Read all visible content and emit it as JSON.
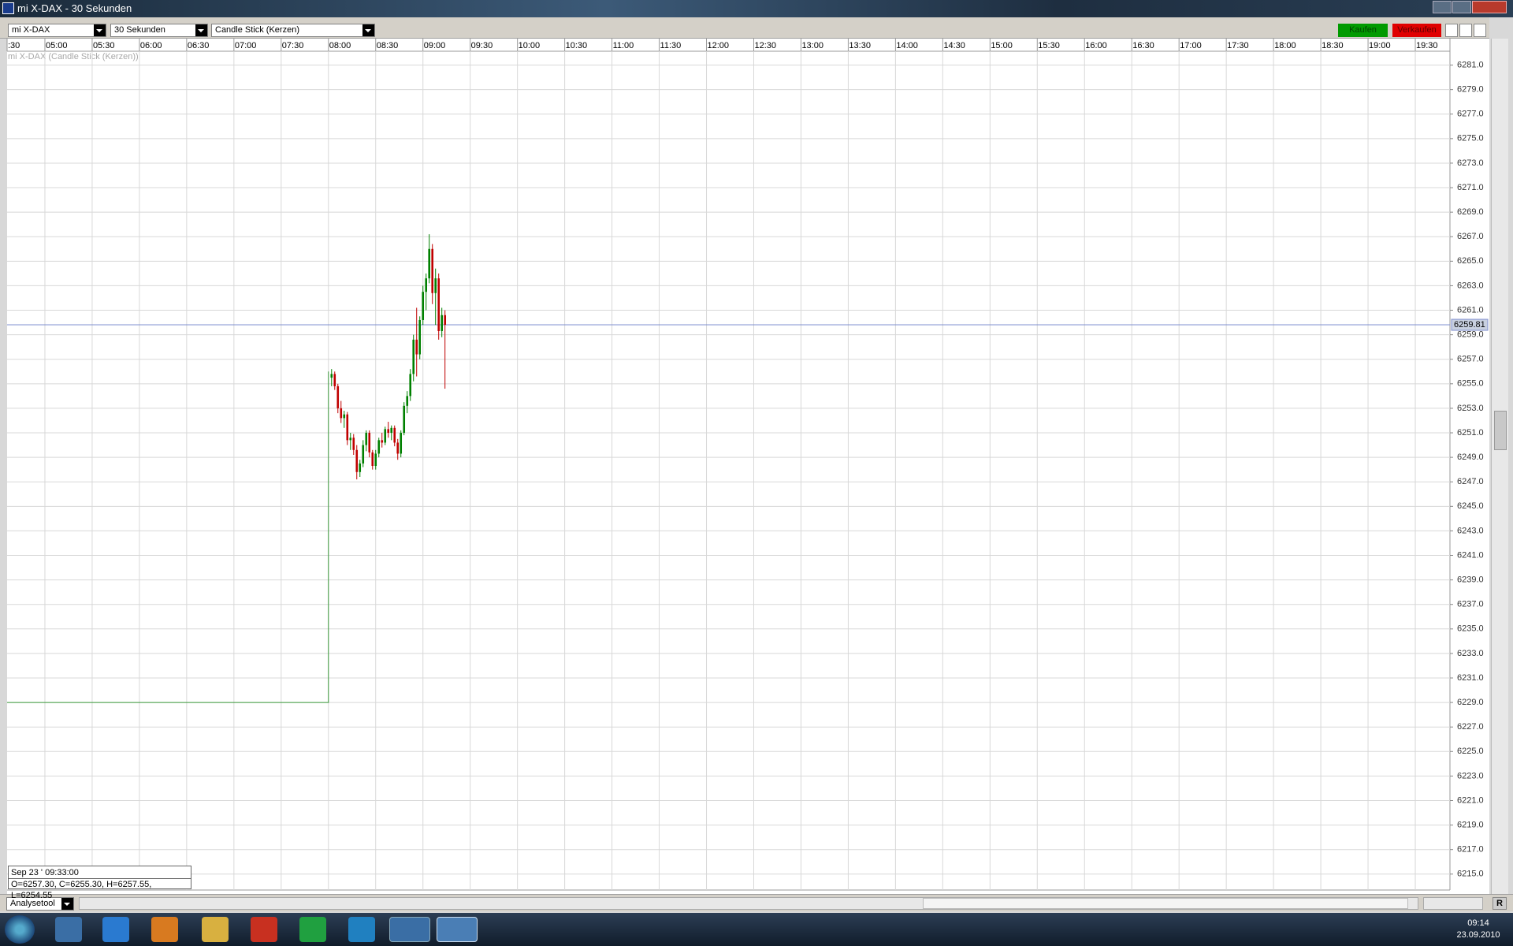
{
  "window": {
    "title": "mi X-DAX - 30 Sekunden"
  },
  "toolbar": {
    "instrument": "mi X-DAX",
    "interval": "30 Sekunden",
    "chart_style": "Candle Stick (Kerzen)",
    "buy": "Kaufen",
    "sell": "Verkaufen"
  },
  "chart_data": {
    "type": "candlestick",
    "title": "mi X-DAX (Candle Stick (Kerzen))",
    "x": [
      482,
      484,
      486,
      488,
      490,
      492,
      494,
      496,
      498,
      500,
      502,
      504,
      506,
      508,
      510,
      512,
      514,
      516,
      518,
      520,
      522,
      524,
      526,
      528,
      530,
      532,
      534,
      536,
      538,
      540,
      542,
      544,
      546,
      548,
      550,
      552,
      554
    ],
    "open": [
      6255.5,
      6255.8,
      6254.8,
      6253.0,
      6252.2,
      6252.5,
      6250.4,
      6250.6,
      6249.6,
      6247.8,
      6248.5,
      6250.0,
      6251.0,
      6249.4,
      6248.3,
      6249.3,
      6250.4,
      6250.2,
      6251.3,
      6251.0,
      6251.4,
      6250.2,
      6249.3,
      6251.0,
      6253.2,
      6254.0,
      6255.8,
      6258.6,
      6257.4,
      6260.2,
      6262.5,
      6263.6,
      6266.0,
      6262.4,
      6263.6,
      6259.3,
      6260.6
    ],
    "high": [
      6256.2,
      6256.0,
      6255.0,
      6253.6,
      6252.8,
      6252.7,
      6251.0,
      6250.9,
      6250.0,
      6248.8,
      6250.4,
      6251.2,
      6251.2,
      6249.6,
      6249.6,
      6250.6,
      6251.0,
      6251.5,
      6251.9,
      6251.6,
      6251.6,
      6250.5,
      6251.2,
      6253.5,
      6254.4,
      6256.2,
      6259.0,
      6261.2,
      6260.5,
      6263.0,
      6264.0,
      6267.2,
      6266.4,
      6264.4,
      6264.0,
      6261.2,
      6261.0
    ],
    "low": [
      6254.8,
      6254.5,
      6252.6,
      6251.8,
      6251.4,
      6250.0,
      6249.6,
      6249.2,
      6247.2,
      6247.4,
      6248.2,
      6249.5,
      6249.0,
      6248.0,
      6248.0,
      6249.0,
      6249.8,
      6250.0,
      6250.6,
      6250.4,
      6249.9,
      6248.8,
      6249.0,
      6250.8,
      6252.6,
      6253.6,
      6255.2,
      6255.6,
      6257.0,
      6259.8,
      6261.0,
      6263.2,
      6261.5,
      6259.8,
      6258.6,
      6258.8,
      6254.6
    ],
    "close": [
      6255.8,
      6254.8,
      6253.0,
      6252.2,
      6252.5,
      6250.4,
      6250.6,
      6249.6,
      6247.8,
      6248.5,
      6250.0,
      6251.0,
      6249.4,
      6248.3,
      6249.3,
      6250.4,
      6250.2,
      6251.3,
      6251.0,
      6251.4,
      6250.2,
      6249.3,
      6251.0,
      6253.2,
      6254.0,
      6255.8,
      6258.6,
      6257.4,
      6260.2,
      6262.5,
      6263.6,
      6266.0,
      6262.4,
      6263.6,
      6259.3,
      6260.6,
      6259.81
    ],
    "up_color": "#008000",
    "down_color": "#c00000",
    "series": [
      {
        "color": "#3a9a3a",
        "x": [
          276,
          480,
          480
        ],
        "values": [
          6229,
          6229,
          6256
        ]
      }
    ],
    "last_price": 6259.81,
    "last_price_color": "#8090d0",
    "grid": true,
    "xlim": [
      276,
      1192
    ],
    "ylim": [
      6213.7,
      6282.0
    ],
    "xticks": [
      {
        "value": 270,
        "label": ":30"
      },
      {
        "value": 300,
        "label": "05:00"
      },
      {
        "value": 330,
        "label": "05:30"
      },
      {
        "value": 360,
        "label": "06:00"
      },
      {
        "value": 390,
        "label": "06:30"
      },
      {
        "value": 420,
        "label": "07:00"
      },
      {
        "value": 450,
        "label": "07:30"
      },
      {
        "value": 480,
        "label": "08:00"
      },
      {
        "value": 510,
        "label": "08:30"
      },
      {
        "value": 540,
        "label": "09:00"
      },
      {
        "value": 570,
        "label": "09:30"
      },
      {
        "value": 600,
        "label": "10:00"
      },
      {
        "value": 630,
        "label": "10:30"
      },
      {
        "value": 660,
        "label": "11:00"
      },
      {
        "value": 690,
        "label": "11:30"
      },
      {
        "value": 720,
        "label": "12:00"
      },
      {
        "value": 750,
        "label": "12:30"
      },
      {
        "value": 780,
        "label": "13:00"
      },
      {
        "value": 810,
        "label": "13:30"
      },
      {
        "value": 840,
        "label": "14:00"
      },
      {
        "value": 870,
        "label": "14:30"
      },
      {
        "value": 900,
        "label": "15:00"
      },
      {
        "value": 930,
        "label": "15:30"
      },
      {
        "value": 960,
        "label": "16:00"
      },
      {
        "value": 990,
        "label": "16:30"
      },
      {
        "value": 1020,
        "label": "17:00"
      },
      {
        "value": 1050,
        "label": "17:30"
      },
      {
        "value": 1080,
        "label": "18:00"
      },
      {
        "value": 1110,
        "label": "18:30"
      },
      {
        "value": 1140,
        "label": "19:00"
      },
      {
        "value": 1170,
        "label": "19:30"
      }
    ],
    "yticks": [
      {
        "value": 6215,
        "label": "6215.0"
      },
      {
        "value": 6217,
        "label": "6217.0"
      },
      {
        "value": 6219,
        "label": "6219.0"
      },
      {
        "value": 6221,
        "label": "6221.0"
      },
      {
        "value": 6223,
        "label": "6223.0"
      },
      {
        "value": 6225,
        "label": "6225.0"
      },
      {
        "value": 6227,
        "label": "6227.0"
      },
      {
        "value": 6229,
        "label": "6229.0"
      },
      {
        "value": 6231,
        "label": "6231.0"
      },
      {
        "value": 6233,
        "label": "6233.0"
      },
      {
        "value": 6235,
        "label": "6235.0"
      },
      {
        "value": 6237,
        "label": "6237.0"
      },
      {
        "value": 6239,
        "label": "6239.0"
      },
      {
        "value": 6241,
        "label": "6241.0"
      },
      {
        "value": 6243,
        "label": "6243.0"
      },
      {
        "value": 6245,
        "label": "6245.0"
      },
      {
        "value": 6247,
        "label": "6247.0"
      },
      {
        "value": 6249,
        "label": "6249.0"
      },
      {
        "value": 6251,
        "label": "6251.0"
      },
      {
        "value": 6253,
        "label": "6253.0"
      },
      {
        "value": 6255,
        "label": "6255.0"
      },
      {
        "value": 6257,
        "label": "6257.0"
      },
      {
        "value": 6259,
        "label": "6259.0"
      },
      {
        "value": 6261,
        "label": "6261.0"
      },
      {
        "value": 6263,
        "label": "6263.0"
      },
      {
        "value": 6265,
        "label": "6265.0"
      },
      {
        "value": 6267,
        "label": "6267.0"
      },
      {
        "value": 6269,
        "label": "6269.0"
      },
      {
        "value": 6271,
        "label": "6271.0"
      },
      {
        "value": 6273,
        "label": "6273.0"
      },
      {
        "value": 6275,
        "label": "6275.0"
      },
      {
        "value": 6277,
        "label": "6277.0"
      },
      {
        "value": 6279,
        "label": "6279.0"
      },
      {
        "value": 6281,
        "label": "6281.0"
      }
    ]
  },
  "info_box": {
    "date": "Sep 23 ' 09:33:00",
    "ohlc": "O=6257.30, C=6255.30, H=6257.55, L=6254.55"
  },
  "footer": {
    "tool": "Analysetool",
    "reset": "R"
  },
  "taskbar": {
    "time": "09:14",
    "date": "23.09.2010"
  }
}
